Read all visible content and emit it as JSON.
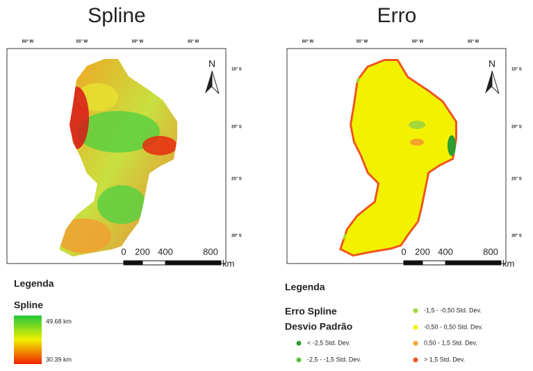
{
  "maps": [
    {
      "title": "Spline",
      "lon_labels": [
        "60° W",
        "55° W",
        "50° W",
        "45° W"
      ],
      "lat_labels": [
        "15° S",
        "20° S",
        "25° S",
        "30° S"
      ],
      "north": "N",
      "scale": {
        "ticks": [
          0,
          200,
          400,
          800
        ],
        "unit": "km"
      }
    },
    {
      "title": "Erro",
      "lon_labels": [
        "60° W",
        "55° W",
        "50° W",
        "45° W"
      ],
      "lat_labels": [
        "15° S",
        "20° S",
        "25° S",
        "30° S"
      ],
      "north": "N",
      "scale": {
        "ticks": [
          0,
          200,
          400,
          800
        ],
        "unit": "km"
      }
    }
  ],
  "legend_spline": {
    "heading": "Legenda",
    "title": "Spline",
    "max_label": "49.68 km",
    "min_label": "30.39 km"
  },
  "legend_erro": {
    "heading": "Legenda",
    "title": "Erro Spline",
    "subtitle": "Desvio Padrão",
    "items": [
      {
        "label": "< -2,5 Std. Dev.",
        "color": "#2e9e2e"
      },
      {
        "label": "-2,5 - -1,5 Std. Dev.",
        "color": "#5cc23a"
      },
      {
        "label": "-1,5 - -0,50 Std. Dev.",
        "color": "#a6d63a"
      },
      {
        "label": "-0,50 - 0,50 Std. Dev.",
        "color": "#f2f200"
      },
      {
        "label": "0,50 - 1,5 Std. Dev.",
        "color": "#f4a42a"
      },
      {
        "label": "> 1,5 Std. Dev.",
        "color": "#ee5522"
      }
    ]
  }
}
